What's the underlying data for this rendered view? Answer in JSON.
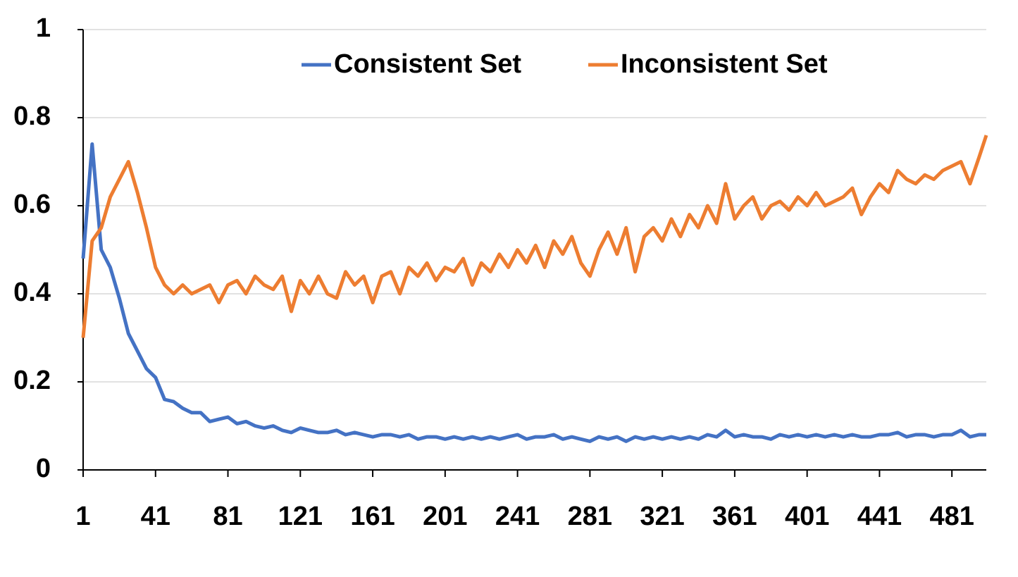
{
  "chart_data": {
    "type": "line",
    "x": [
      1,
      6,
      11,
      16,
      21,
      26,
      31,
      36,
      41,
      46,
      51,
      56,
      61,
      66,
      71,
      76,
      81,
      86,
      91,
      96,
      101,
      106,
      111,
      116,
      121,
      126,
      131,
      136,
      141,
      146,
      151,
      156,
      161,
      166,
      171,
      176,
      181,
      186,
      191,
      196,
      201,
      206,
      211,
      216,
      221,
      226,
      231,
      236,
      241,
      246,
      251,
      256,
      261,
      266,
      271,
      276,
      281,
      286,
      291,
      296,
      301,
      306,
      311,
      316,
      321,
      326,
      331,
      336,
      341,
      346,
      351,
      356,
      361,
      366,
      371,
      376,
      381,
      386,
      391,
      396,
      401,
      406,
      411,
      416,
      421,
      426,
      431,
      436,
      441,
      446,
      451,
      456,
      461,
      466,
      471,
      476,
      481,
      486,
      491,
      496,
      500
    ],
    "series": [
      {
        "name": "Consistent Set",
        "color": "#4472c4",
        "values": [
          0.48,
          0.74,
          0.5,
          0.46,
          0.39,
          0.31,
          0.27,
          0.23,
          0.21,
          0.16,
          0.155,
          0.14,
          0.13,
          0.13,
          0.11,
          0.115,
          0.12,
          0.105,
          0.11,
          0.1,
          0.095,
          0.1,
          0.09,
          0.085,
          0.095,
          0.09,
          0.085,
          0.085,
          0.09,
          0.08,
          0.085,
          0.08,
          0.075,
          0.08,
          0.08,
          0.075,
          0.08,
          0.07,
          0.075,
          0.075,
          0.07,
          0.075,
          0.07,
          0.075,
          0.07,
          0.075,
          0.07,
          0.075,
          0.08,
          0.07,
          0.075,
          0.075,
          0.08,
          0.07,
          0.075,
          0.07,
          0.065,
          0.075,
          0.07,
          0.075,
          0.065,
          0.075,
          0.07,
          0.075,
          0.07,
          0.075,
          0.07,
          0.075,
          0.07,
          0.08,
          0.075,
          0.09,
          0.075,
          0.08,
          0.075,
          0.075,
          0.07,
          0.08,
          0.075,
          0.08,
          0.075,
          0.08,
          0.075,
          0.08,
          0.075,
          0.08,
          0.075,
          0.075,
          0.08,
          0.08,
          0.085,
          0.075,
          0.08,
          0.08,
          0.075,
          0.08,
          0.08,
          0.09,
          0.075,
          0.08,
          0.08
        ]
      },
      {
        "name": "Inconsistent Set",
        "color": "#ed7d31",
        "values": [
          0.3,
          0.52,
          0.55,
          0.62,
          0.66,
          0.7,
          0.63,
          0.55,
          0.46,
          0.42,
          0.4,
          0.42,
          0.4,
          0.41,
          0.42,
          0.38,
          0.42,
          0.43,
          0.4,
          0.44,
          0.42,
          0.41,
          0.44,
          0.36,
          0.43,
          0.4,
          0.44,
          0.4,
          0.39,
          0.45,
          0.42,
          0.44,
          0.38,
          0.44,
          0.45,
          0.4,
          0.46,
          0.44,
          0.47,
          0.43,
          0.46,
          0.45,
          0.48,
          0.42,
          0.47,
          0.45,
          0.49,
          0.46,
          0.5,
          0.47,
          0.51,
          0.46,
          0.52,
          0.49,
          0.53,
          0.47,
          0.44,
          0.5,
          0.54,
          0.49,
          0.55,
          0.45,
          0.53,
          0.55,
          0.52,
          0.57,
          0.53,
          0.58,
          0.55,
          0.6,
          0.56,
          0.65,
          0.57,
          0.6,
          0.62,
          0.57,
          0.6,
          0.61,
          0.59,
          0.62,
          0.6,
          0.63,
          0.6,
          0.61,
          0.62,
          0.64,
          0.58,
          0.62,
          0.65,
          0.63,
          0.68,
          0.66,
          0.65,
          0.67,
          0.66,
          0.68,
          0.69,
          0.7,
          0.65,
          0.71,
          0.76
        ]
      }
    ],
    "xlim": [
      1,
      500
    ],
    "xticks": [
      1,
      41,
      81,
      121,
      161,
      201,
      241,
      281,
      321,
      361,
      401,
      441,
      481
    ],
    "ylim": [
      0,
      1
    ],
    "yticks": [
      0,
      0.2,
      0.4,
      0.6,
      0.8,
      1
    ],
    "grid": true,
    "legend": "top"
  }
}
